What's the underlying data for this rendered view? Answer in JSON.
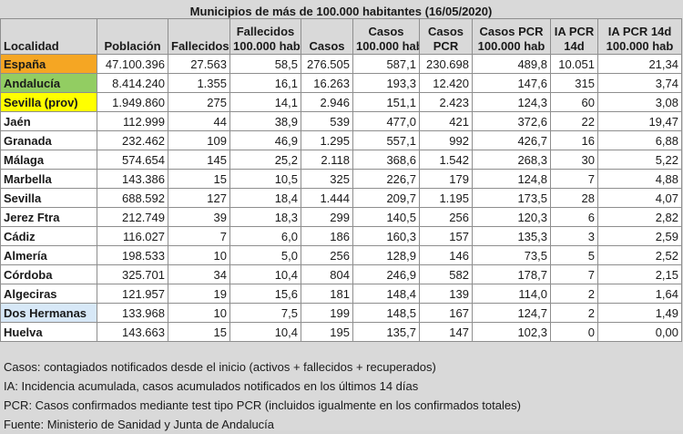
{
  "title": "Municipios de más de 100.000 habitantes (16/05/2020)",
  "columns": [
    "Localidad",
    "Población",
    "Fallecidos",
    "Fallecidos\n100.000 hab",
    "Casos",
    "Casos\n100.000 hab",
    "Casos\nPCR",
    "Casos PCR\n100.000 hab",
    "IA PCR\n14d",
    "IA PCR 14d\n100.000 hab"
  ],
  "rows": [
    {
      "name": "España",
      "style": "orange",
      "cells": [
        "47.100.396",
        "27.563",
        "58,5",
        "276.505",
        "587,1",
        "230.698",
        "489,8",
        "10.051",
        "21,34"
      ]
    },
    {
      "name": "Andalucía",
      "style": "green",
      "cells": [
        "8.414.240",
        "1.355",
        "16,1",
        "16.263",
        "193,3",
        "12.420",
        "147,6",
        "315",
        "3,74"
      ]
    },
    {
      "name": "Sevilla (prov)",
      "style": "yellow",
      "cells": [
        "1.949.860",
        "275",
        "14,1",
        "2.946",
        "151,1",
        "2.423",
        "124,3",
        "60",
        "3,08"
      ]
    },
    {
      "name": "Jaén",
      "style": "",
      "cells": [
        "112.999",
        "44",
        "38,9",
        "539",
        "477,0",
        "421",
        "372,6",
        "22",
        "19,47"
      ]
    },
    {
      "name": "Granada",
      "style": "",
      "cells": [
        "232.462",
        "109",
        "46,9",
        "1.295",
        "557,1",
        "992",
        "426,7",
        "16",
        "6,88"
      ]
    },
    {
      "name": "Málaga",
      "style": "",
      "cells": [
        "574.654",
        "145",
        "25,2",
        "2.118",
        "368,6",
        "1.542",
        "268,3",
        "30",
        "5,22"
      ]
    },
    {
      "name": "Marbella",
      "style": "",
      "cells": [
        "143.386",
        "15",
        "10,5",
        "325",
        "226,7",
        "179",
        "124,8",
        "7",
        "4,88"
      ]
    },
    {
      "name": "Sevilla",
      "style": "",
      "cells": [
        "688.592",
        "127",
        "18,4",
        "1.444",
        "209,7",
        "1.195",
        "173,5",
        "28",
        "4,07"
      ]
    },
    {
      "name": "Jerez Ftra",
      "style": "",
      "cells": [
        "212.749",
        "39",
        "18,3",
        "299",
        "140,5",
        "256",
        "120,3",
        "6",
        "2,82"
      ]
    },
    {
      "name": "Cádiz",
      "style": "",
      "cells": [
        "116.027",
        "7",
        "6,0",
        "186",
        "160,3",
        "157",
        "135,3",
        "3",
        "2,59"
      ]
    },
    {
      "name": "Almería",
      "style": "",
      "cells": [
        "198.533",
        "10",
        "5,0",
        "256",
        "128,9",
        "146",
        "73,5",
        "5",
        "2,52"
      ]
    },
    {
      "name": "Córdoba",
      "style": "",
      "cells": [
        "325.701",
        "34",
        "10,4",
        "804",
        "246,9",
        "582",
        "178,7",
        "7",
        "2,15"
      ]
    },
    {
      "name": "Algeciras",
      "style": "",
      "cells": [
        "121.957",
        "19",
        "15,6",
        "181",
        "148,4",
        "139",
        "114,0",
        "2",
        "1,64"
      ]
    },
    {
      "name": "Dos Hermanas",
      "style": "blue",
      "cells": [
        "133.968",
        "10",
        "7,5",
        "199",
        "148,5",
        "167",
        "124,7",
        "2",
        "1,49"
      ]
    },
    {
      "name": "Huelva",
      "style": "",
      "cells": [
        "143.663",
        "15",
        "10,4",
        "195",
        "135,7",
        "147",
        "102,3",
        "0",
        "0,00"
      ]
    }
  ],
  "notes": [
    "Casos: contagiados notificados desde el inicio (activos + fallecidos + recuperados)",
    "IA: Incidencia acumulada, casos acumulados notificados en los últimos 14 días",
    "PCR: Casos confirmados mediante test tipo PCR (incluidos igualmente en los confirmados totales)",
    "Fuente: Ministerio de Sanidad y Junta de Andalucía"
  ]
}
